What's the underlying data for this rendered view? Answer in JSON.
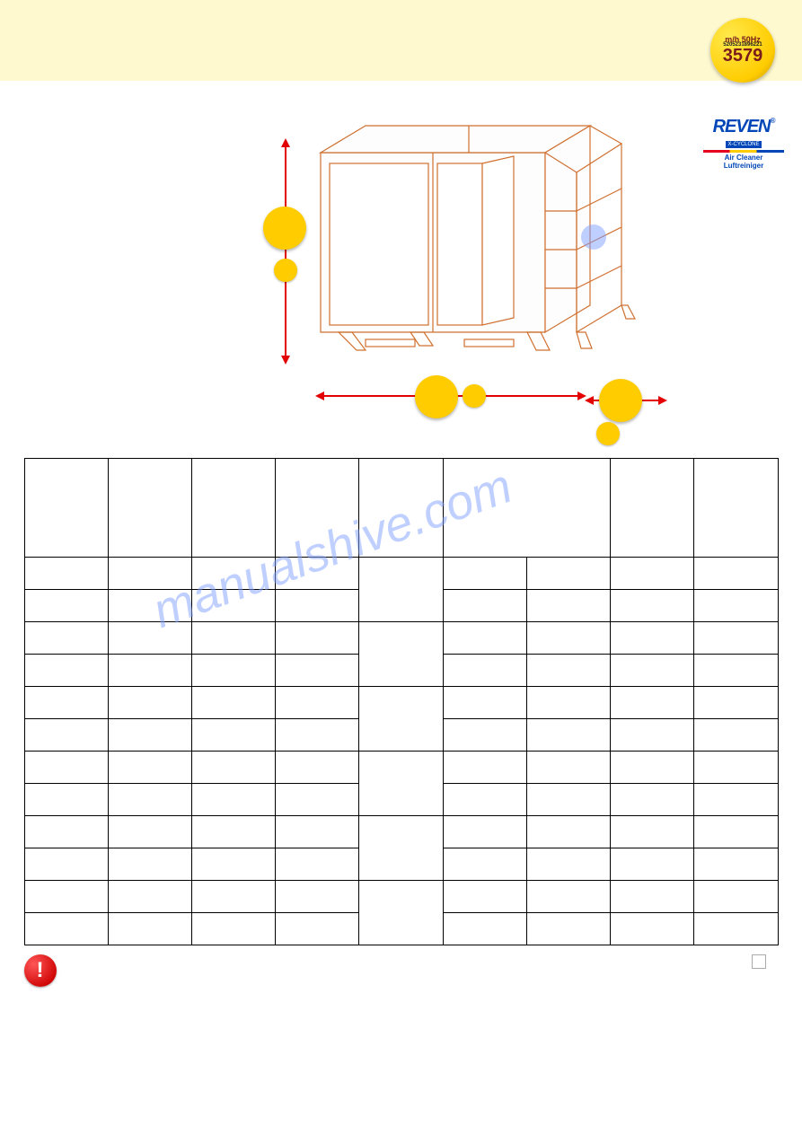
{
  "badge": {
    "top": "m/h 50Hz",
    "mid": "5205231896221",
    "big": "3579"
  },
  "brand": {
    "name": "REVEN",
    "sub": "X-CYCLONE",
    "tag1": "Air Cleaner",
    "tag2": "Luftreiniger"
  },
  "table": {
    "headers": [
      "",
      "",
      "",
      "",
      "",
      "",
      "",
      "",
      ""
    ],
    "rows": [
      [
        "",
        "",
        "",
        "",
        "",
        "",
        "",
        "",
        ""
      ],
      [
        "",
        "",
        "",
        "",
        "",
        "",
        "",
        "",
        ""
      ],
      [
        "",
        "",
        "",
        "",
        "",
        "",
        "",
        "",
        ""
      ],
      [
        "",
        "",
        "",
        "",
        "",
        "",
        "",
        "",
        ""
      ],
      [
        "",
        "",
        "",
        "",
        "",
        "",
        "",
        "",
        ""
      ],
      [
        "",
        "",
        "",
        "",
        "",
        "",
        "",
        "",
        ""
      ],
      [
        "",
        "",
        "",
        "",
        "",
        "",
        "",
        "",
        ""
      ],
      [
        "",
        "",
        "",
        "",
        "",
        "",
        "",
        "",
        ""
      ],
      [
        "",
        "",
        "",
        "",
        "",
        "",
        "",
        "",
        ""
      ],
      [
        "",
        "",
        "",
        "",
        "",
        "",
        "",
        "",
        ""
      ],
      [
        "",
        "",
        "",
        "",
        "",
        "",
        "",
        "",
        ""
      ],
      [
        "",
        "",
        "",
        "",
        "",
        "",
        "",
        "",
        ""
      ]
    ],
    "row_span_col5": 2,
    "col_span_head6": 2
  },
  "watermark": "manualshive.com",
  "warn_glyph": "!",
  "warn_text": "",
  "colors": {
    "header_bg": "#fff9d0",
    "badge_yellow": "#ffcc00",
    "dim_red": "#e20000",
    "brand_blue": "#0046b8",
    "wm_blue": "#80a0ff"
  }
}
